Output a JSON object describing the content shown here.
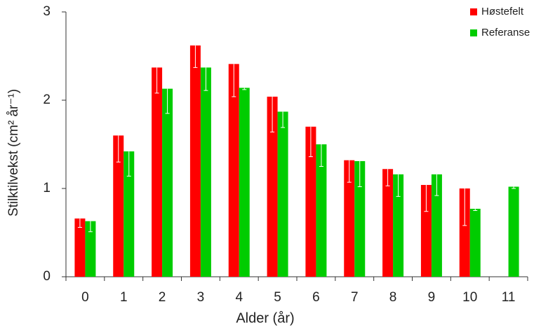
{
  "chart_data": {
    "type": "bar",
    "xlabel": "Alder  (år)",
    "ylabel": "Stilktilvekst  (cm² år⁻¹)",
    "categories": [
      "0",
      "1",
      "2",
      "3",
      "4",
      "5",
      "6",
      "7",
      "8",
      "9",
      "10",
      "11"
    ],
    "series": [
      {
        "name": "Høstefelt",
        "color": "#ff0000",
        "values": [
          0.66,
          1.6,
          2.37,
          2.62,
          2.41,
          2.04,
          1.7,
          1.32,
          1.22,
          1.04,
          1.0,
          null
        ],
        "errors": [
          0.1,
          0.3,
          0.29,
          0.25,
          0.37,
          0.4,
          0.34,
          0.25,
          0.19,
          0.3,
          0.42,
          null
        ]
      },
      {
        "name": "Referanse",
        "color": "#00cc00",
        "values": [
          0.63,
          1.42,
          2.13,
          2.37,
          2.14,
          1.87,
          1.5,
          1.31,
          1.16,
          1.16,
          0.77,
          1.02
        ],
        "errors": [
          0.12,
          0.28,
          0.28,
          0.26,
          0.02,
          0.18,
          0.25,
          0.29,
          0.25,
          0.24,
          0.02,
          0.02
        ]
      }
    ],
    "ylim": [
      0,
      3
    ],
    "yticks": [
      0,
      1,
      2,
      3
    ],
    "legend": "upper right"
  }
}
